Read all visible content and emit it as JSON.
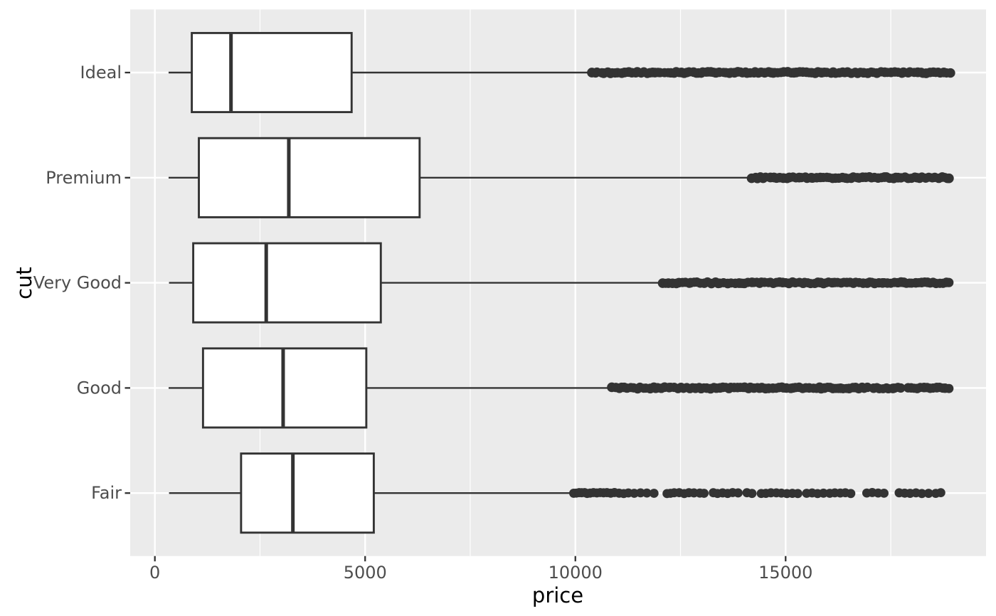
{
  "chart_data": {
    "type": "boxplot",
    "orientation": "horizontal",
    "title": "",
    "xlabel": "price",
    "ylabel": "cut",
    "x_ticks": [
      0,
      5000,
      10000,
      15000
    ],
    "x_tick_labels": [
      "0",
      "5000",
      "10000",
      "15000"
    ],
    "x_minor_ticks": [
      2500,
      7500,
      12500,
      17500
    ],
    "xlim": [
      -590,
      19770
    ],
    "grid": "on",
    "categories_top_to_bottom": [
      "Ideal",
      "Premium",
      "Very Good",
      "Good",
      "Fair"
    ],
    "series": [
      {
        "cut": "Ideal",
        "min": 326,
        "q1": 878,
        "median": 1810,
        "q3": 4679,
        "whisker_high": 10372,
        "outlier_bands": [
          [
            10390,
            18910
          ]
        ]
      },
      {
        "cut": "Premium",
        "min": 326,
        "q1": 1046,
        "median": 3185,
        "q3": 6296,
        "whisker_high": 14170,
        "outlier_bands": [
          [
            14190,
            18900
          ]
        ]
      },
      {
        "cut": "Very Good",
        "min": 336,
        "q1": 912,
        "median": 2648,
        "q3": 5373,
        "whisker_high": 12063,
        "outlier_bands": [
          [
            12080,
            18910
          ]
        ]
      },
      {
        "cut": "Good",
        "min": 327,
        "q1": 1145,
        "median": 3050,
        "q3": 5028,
        "whisker_high": 10843,
        "outlier_bands": [
          [
            10860,
            16950
          ],
          [
            17100,
            17750
          ],
          [
            17900,
            18880
          ]
        ]
      },
      {
        "cut": "Fair",
        "min": 337,
        "q1": 2050,
        "median": 3282,
        "q3": 5206,
        "whisker_high": 9880,
        "outliers": [
          9960,
          10020,
          10090,
          10150,
          10220,
          10280,
          10350,
          10430,
          10510,
          10590,
          10670,
          10750,
          10840,
          10930,
          11040,
          11150,
          11260,
          11400,
          11550,
          11700,
          11870,
          12180,
          12260,
          12350,
          12470,
          12590,
          12700,
          12820,
          12960,
          13060,
          13280,
          13380,
          13500,
          13620,
          13740,
          13870,
          14080,
          14200,
          14420,
          14530,
          14650,
          14780,
          14900,
          15030,
          15160,
          15290,
          15500,
          15630,
          15760,
          15900,
          16050,
          16170,
          16300,
          16420,
          16550,
          16930,
          17060,
          17200,
          17340,
          17700,
          17830,
          17960,
          18100,
          18240,
          18400,
          18570,
          18690
        ]
      }
    ],
    "colors": {
      "background": "#ffffff",
      "panel": "#ebebeb",
      "grid": "#ffffff",
      "stroke": "#333333",
      "box_fill": "#ffffff",
      "tick_text": "#4d4d4d",
      "title_text": "#000000"
    }
  }
}
